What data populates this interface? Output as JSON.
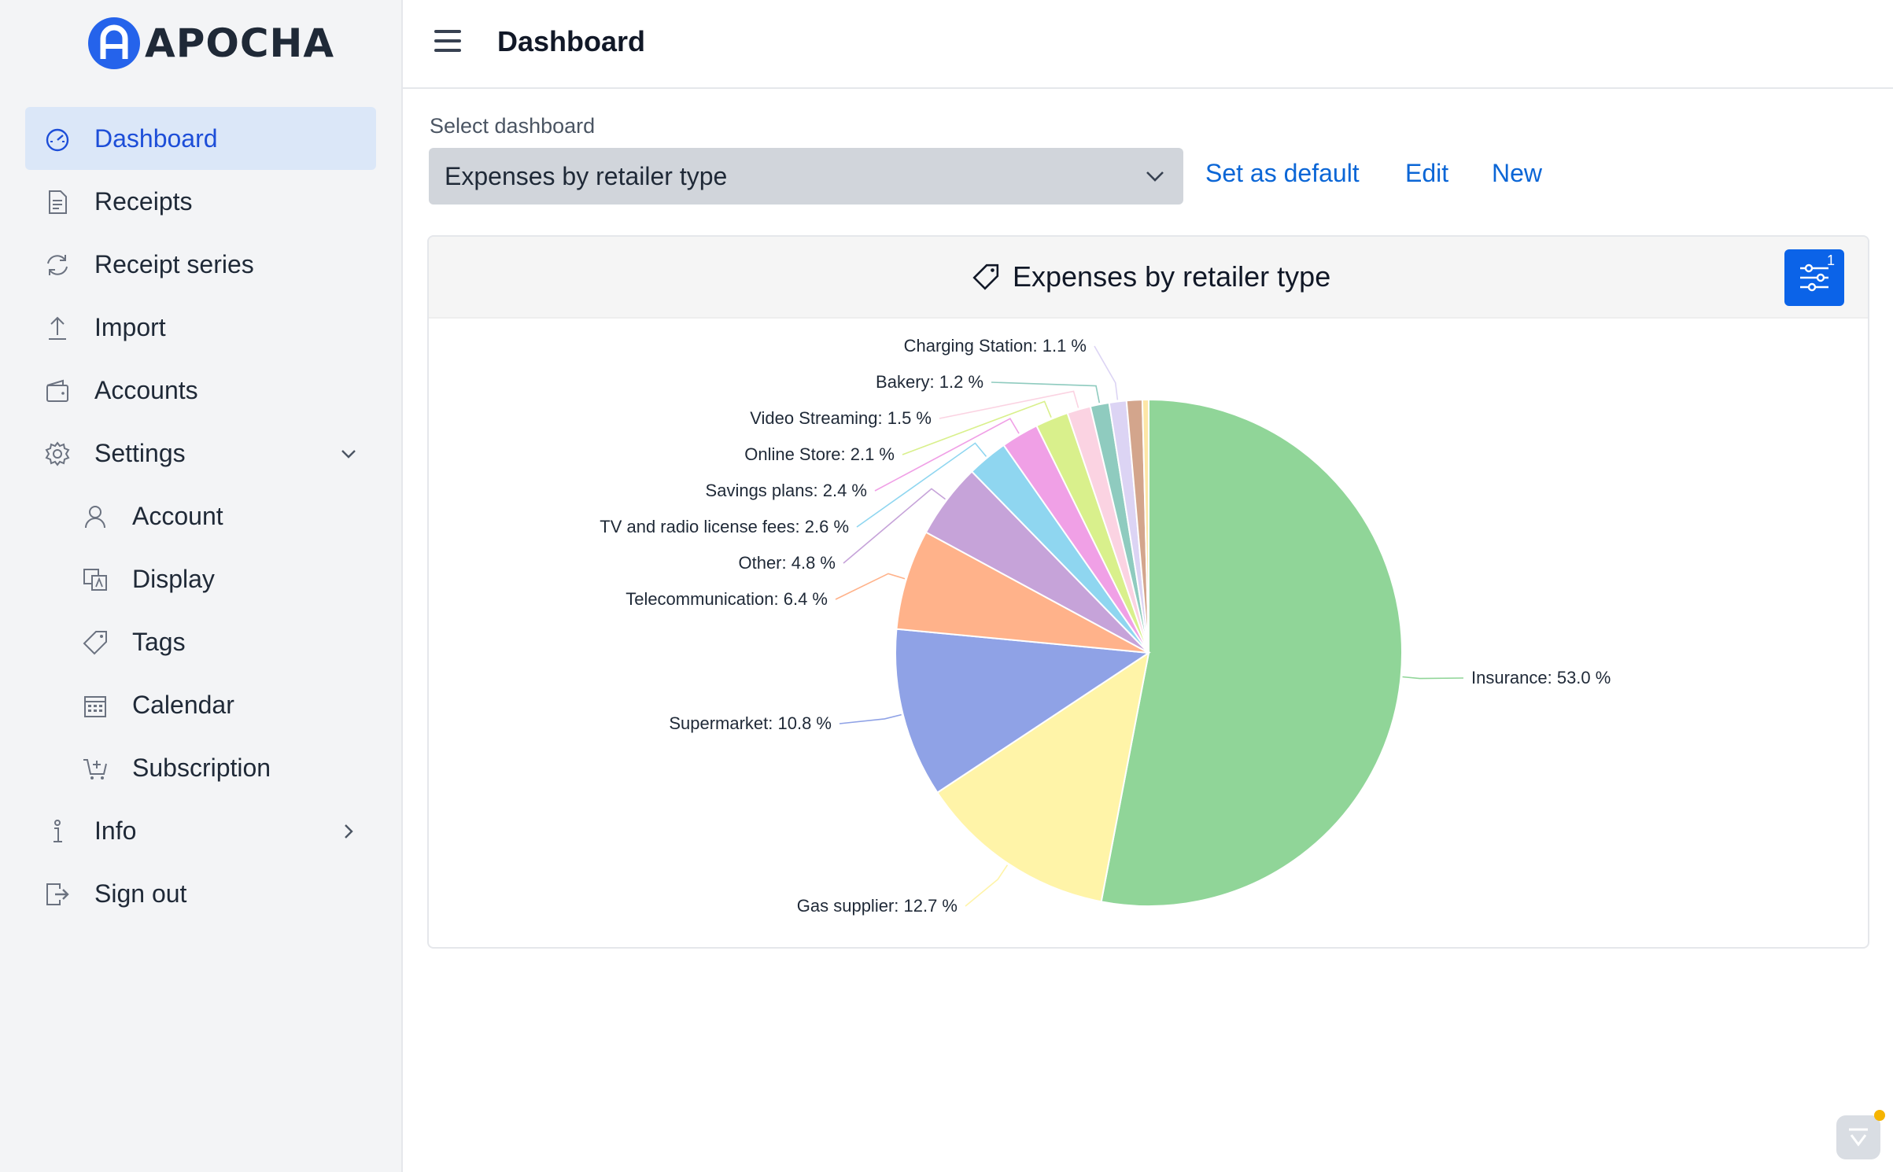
{
  "app": {
    "logo_text": "APOCHA",
    "logo_letter": "A"
  },
  "sidebar": {
    "items": [
      {
        "label": "Dashboard",
        "icon": "dashboard-gauge-icon",
        "active": true
      },
      {
        "label": "Receipts",
        "icon": "receipt-document-icon"
      },
      {
        "label": "Receipt series",
        "icon": "refresh-cycle-icon"
      },
      {
        "label": "Import",
        "icon": "upload-arrow-icon"
      },
      {
        "label": "Accounts",
        "icon": "wallet-icon"
      },
      {
        "label": "Settings",
        "icon": "gear-icon",
        "expanded": true
      },
      {
        "label": "Account",
        "icon": "user-icon",
        "sub": true
      },
      {
        "label": "Display",
        "icon": "translate-display-icon",
        "sub": true
      },
      {
        "label": "Tags",
        "icon": "tag-icon",
        "sub": true
      },
      {
        "label": "Calendar",
        "icon": "calendar-icon",
        "sub": true
      },
      {
        "label": "Subscription",
        "icon": "cart-plus-icon",
        "sub": true
      },
      {
        "label": "Info",
        "icon": "info-icon"
      },
      {
        "label": "Sign out",
        "icon": "sign-out-icon"
      }
    ]
  },
  "header": {
    "title": "Dashboard",
    "menu_icon": "hamburger-menu-icon"
  },
  "controls": {
    "select_label": "Select dashboard",
    "selected_dashboard": "Expenses by retailer type",
    "set_default": "Set as default",
    "edit": "Edit",
    "new": "New"
  },
  "card": {
    "title": "Expenses by retailer type",
    "title_icon": "tag-icon",
    "filter_icon": "filter-sliders-icon",
    "filter_count": "1"
  },
  "chart_data": {
    "type": "pie",
    "slices": [
      {
        "label": "Insurance: 53.0 %",
        "value": 53.0,
        "color": "#90d598"
      },
      {
        "label": "Gas supplier: 12.7 %",
        "value": 12.7,
        "color": "#fff4a8"
      },
      {
        "label": "Supermarket: 10.8 %",
        "value": 10.8,
        "color": "#8fa2e6"
      },
      {
        "label": "Telecommunication: 6.4 %",
        "value": 6.4,
        "color": "#ffb28a"
      },
      {
        "label": "Other: 4.8 %",
        "value": 4.8,
        "color": "#c6a3d9"
      },
      {
        "label": "TV and radio license fees: 2.6 %",
        "value": 2.6,
        "color": "#8fd6f0"
      },
      {
        "label": "Savings plans: 2.4 %",
        "value": 2.4,
        "color": "#f0a0e6"
      },
      {
        "label": "Online Store: 2.1 %",
        "value": 2.1,
        "color": "#d9f08c"
      },
      {
        "label": "Video Streaming: 1.5 %",
        "value": 1.5,
        "color": "#fbd3e2"
      },
      {
        "label": "Bakery: 1.2 %",
        "value": 1.2,
        "color": "#8fcbbf"
      },
      {
        "label": "Charging Station: 1.1 %",
        "value": 1.1,
        "color": "#dcd4f4"
      },
      {
        "label": "",
        "value": 1.0,
        "color": "#d3a58c"
      },
      {
        "label": "",
        "value": 0.4,
        "color": "#fde6a6"
      }
    ]
  }
}
